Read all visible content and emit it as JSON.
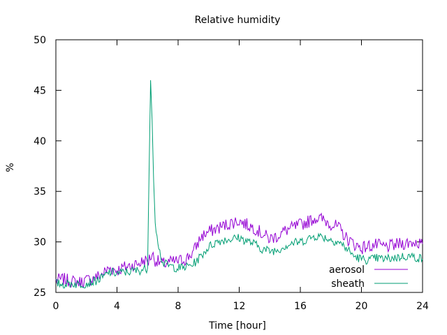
{
  "chart_data": {
    "type": "line",
    "title": "Relative humidity",
    "xlabel": "Time [hour]",
    "ylabel": "%",
    "xlim": [
      0,
      24
    ],
    "ylim": [
      25,
      50
    ],
    "xticks": [
      0,
      4,
      8,
      12,
      16,
      20,
      24
    ],
    "yticks": [
      25,
      30,
      35,
      40,
      45,
      50
    ],
    "grid": false,
    "legend": "bottom-right",
    "series": [
      {
        "name": "aerosol",
        "color": "#9400d3",
        "points": [
          [
            0,
            26.2
          ],
          [
            0.5,
            26.3
          ],
          [
            1,
            26.1
          ],
          [
            1.5,
            26.0
          ],
          [
            2,
            26.2
          ],
          [
            2.5,
            26.4
          ],
          [
            3,
            26.8
          ],
          [
            3.5,
            27.4
          ],
          [
            4,
            27.2
          ],
          [
            4.5,
            27.5
          ],
          [
            5,
            27.7
          ],
          [
            5.5,
            27.9
          ],
          [
            5.8,
            28.2
          ],
          [
            6.0,
            28.0
          ],
          [
            6.3,
            28.8
          ],
          [
            6.5,
            28.2
          ],
          [
            7,
            27.8
          ],
          [
            7.5,
            28.0
          ],
          [
            8,
            28.1
          ],
          [
            8.5,
            28.3
          ],
          [
            9,
            29.0
          ],
          [
            9.5,
            30.5
          ],
          [
            10,
            31.0
          ],
          [
            10.5,
            31.3
          ],
          [
            11,
            31.6
          ],
          [
            11.5,
            31.9
          ],
          [
            12,
            32.1
          ],
          [
            12.5,
            31.7
          ],
          [
            13,
            31.4
          ],
          [
            13.5,
            30.8
          ],
          [
            14,
            30.3
          ],
          [
            14.5,
            30.6
          ],
          [
            15,
            31.1
          ],
          [
            15.5,
            31.4
          ],
          [
            16,
            31.7
          ],
          [
            16.5,
            32.0
          ],
          [
            17,
            32.4
          ],
          [
            17.5,
            32.2
          ],
          [
            18,
            31.8
          ],
          [
            18.5,
            31.4
          ],
          [
            19,
            30.4
          ],
          [
            19.5,
            29.8
          ],
          [
            20,
            29.4
          ],
          [
            20.5,
            29.6
          ],
          [
            21,
            29.7
          ],
          [
            21.5,
            29.5
          ],
          [
            22,
            29.6
          ],
          [
            22.5,
            29.8
          ],
          [
            23,
            29.9
          ],
          [
            23.5,
            30.0
          ],
          [
            24,
            29.8
          ]
        ]
      },
      {
        "name": "sheath",
        "color": "#009e73",
        "points": [
          [
            0,
            25.9
          ],
          [
            0.5,
            25.8
          ],
          [
            1,
            25.9
          ],
          [
            1.5,
            25.8
          ],
          [
            2,
            25.9
          ],
          [
            2.5,
            26.1
          ],
          [
            3,
            26.4
          ],
          [
            3.5,
            27.0
          ],
          [
            4,
            26.9
          ],
          [
            4.5,
            27.0
          ],
          [
            5,
            27.1
          ],
          [
            5.5,
            27.2
          ],
          [
            6.0,
            27.4
          ],
          [
            6.2,
            46.0
          ],
          [
            6.3,
            42.0
          ],
          [
            6.4,
            36.0
          ],
          [
            6.5,
            32.0
          ],
          [
            6.8,
            29.0
          ],
          [
            7,
            27.9
          ],
          [
            7.5,
            27.6
          ],
          [
            8,
            27.4
          ],
          [
            8.5,
            27.5
          ],
          [
            9,
            27.8
          ],
          [
            9.5,
            28.6
          ],
          [
            10,
            29.5
          ],
          [
            10.5,
            30.0
          ],
          [
            11,
            30.2
          ],
          [
            11.5,
            30.3
          ],
          [
            12,
            30.4
          ],
          [
            12.5,
            30.1
          ],
          [
            13,
            29.8
          ],
          [
            13.5,
            29.3
          ],
          [
            14,
            29.1
          ],
          [
            14.5,
            29.2
          ],
          [
            15,
            29.6
          ],
          [
            15.5,
            29.9
          ],
          [
            16,
            30.0
          ],
          [
            16.5,
            30.3
          ],
          [
            17,
            30.6
          ],
          [
            17.5,
            30.5
          ],
          [
            18,
            30.2
          ],
          [
            18.5,
            30.0
          ],
          [
            19,
            29.4
          ],
          [
            19.5,
            28.6
          ],
          [
            20,
            28.3
          ],
          [
            20.5,
            28.2
          ],
          [
            21,
            28.4
          ],
          [
            21.5,
            28.3
          ],
          [
            22,
            28.4
          ],
          [
            22.5,
            28.5
          ],
          [
            23,
            28.6
          ],
          [
            23.5,
            28.5
          ],
          [
            24,
            28.3
          ]
        ]
      }
    ]
  }
}
